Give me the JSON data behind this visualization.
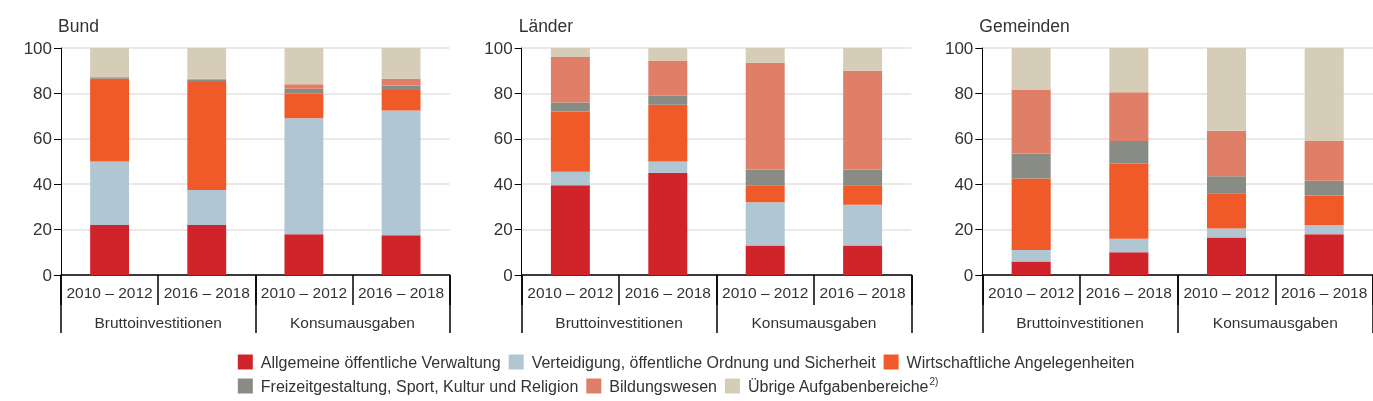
{
  "chart_data": [
    {
      "type": "bar",
      "title": "Bund",
      "categories": [
        "2010 – 2012",
        "2016 – 2018",
        "2010 – 2012",
        "2016 – 2018"
      ],
      "annotations": [
        "Bruttoinvestitionen",
        "Konsumausgaben"
      ],
      "stacked": true,
      "ylim": [
        0,
        100
      ],
      "yticks": [
        0,
        20,
        40,
        60,
        80,
        100
      ],
      "grid": "y",
      "series": [
        {
          "color": "#d0232a",
          "values": [
            22,
            22,
            18,
            17.5
          ]
        },
        {
          "color": "#b0c7d3",
          "values": [
            28,
            15.5,
            51,
            55
          ]
        },
        {
          "color": "#f05a28",
          "values": [
            36.5,
            47.5,
            11,
            9
          ]
        },
        {
          "color": "#888c84",
          "values": [
            0.5,
            1,
            2,
            2
          ]
        },
        {
          "color": "#e07f68",
          "values": [
            0.5,
            0.5,
            2,
            3
          ]
        },
        {
          "color": "#d6cdb9",
          "values": [
            12.5,
            13.5,
            16,
            13.5
          ]
        }
      ]
    },
    {
      "type": "bar",
      "title": "Länder",
      "categories": [
        "2010 – 2012",
        "2016 – 2018",
        "2010 – 2012",
        "2016 – 2018"
      ],
      "annotations": [
        "Bruttoinvestitionen",
        "Konsumausgaben"
      ],
      "stacked": true,
      "ylim": [
        0,
        100
      ],
      "yticks": [
        0,
        20,
        40,
        60,
        80,
        100
      ],
      "grid": "y",
      "legend": "bottom",
      "series": [
        {
          "name": "Allgemeine öffentliche Verwaltung",
          "color": "#d0232a",
          "values": [
            39.5,
            45,
            13,
            13
          ]
        },
        {
          "name": "Verteidigung, öffentliche Ordnung und Sicherheit",
          "color": "#b0c7d3",
          "values": [
            6,
            5,
            19,
            18
          ]
        },
        {
          "name": "Wirtschaftliche Angelegenheiten",
          "color": "#f05a28",
          "values": [
            26.5,
            25,
            7.5,
            8.5
          ]
        },
        {
          "name": "Freizeitgestaltung, Sport, Kultur und Religion",
          "color": "#888c84",
          "values": [
            4,
            4,
            7,
            7
          ]
        },
        {
          "name": "Bildungswesen",
          "color": "#e07f68",
          "values": [
            20,
            15.5,
            47,
            43.5
          ]
        },
        {
          "name": "Übrige Aufgabenbereiche$^{2)}$",
          "color": "#d6cdb9",
          "values": [
            4,
            5.5,
            6.5,
            10
          ]
        }
      ]
    },
    {
      "type": "bar",
      "title": "Gemeinden",
      "categories": [
        "2010 – 2012",
        "2016 – 2018",
        "2010 – 2012",
        "2016 – 2018"
      ],
      "annotations": [
        "Bruttoinvestitionen",
        "Konsumausgaben"
      ],
      "stacked": true,
      "ylim": [
        0,
        100
      ],
      "yticks": [
        0,
        20,
        40,
        60,
        80,
        100
      ],
      "grid": "y",
      "series": [
        {
          "color": "#d0232a",
          "values": [
            6,
            10,
            16.5,
            18
          ]
        },
        {
          "color": "#b0c7d3",
          "values": [
            5,
            6,
            4,
            4
          ]
        },
        {
          "color": "#f05a28",
          "values": [
            31.5,
            33,
            15.5,
            13
          ]
        },
        {
          "color": "#888c84",
          "values": [
            11,
            10,
            7.5,
            6.5
          ]
        },
        {
          "color": "#e07f68",
          "values": [
            28,
            21.5,
            20,
            17.5
          ]
        },
        {
          "color": "#d6cdb9",
          "values": [
            18.5,
            19.5,
            36.5,
            41
          ]
        }
      ]
    }
  ]
}
